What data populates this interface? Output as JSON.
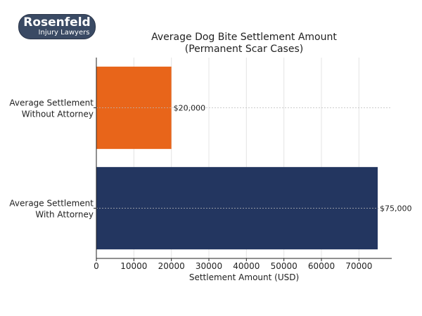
{
  "logo": {
    "name": "Rosenfeld",
    "tagline": "Injury Lawyers"
  },
  "chart_data": {
    "type": "bar",
    "orientation": "horizontal",
    "title": "Average Dog Bite Settlement Amount",
    "subtitle": "(Permanent Scar Cases)",
    "xlabel": "Settlement Amount (USD)",
    "ylabel": "",
    "categories": [
      [
        "Average Settlement",
        "Without Attorney"
      ],
      [
        "Average Settlement",
        "With Attorney"
      ]
    ],
    "values": [
      20000,
      75000
    ],
    "data_labels": [
      "$20,000",
      "$75,000"
    ],
    "colors": [
      "#e8651a",
      "#233660"
    ],
    "xlim": [
      0,
      78750
    ],
    "xticks": [
      0,
      10000,
      20000,
      30000,
      40000,
      50000,
      60000,
      70000
    ],
    "grid": true
  }
}
